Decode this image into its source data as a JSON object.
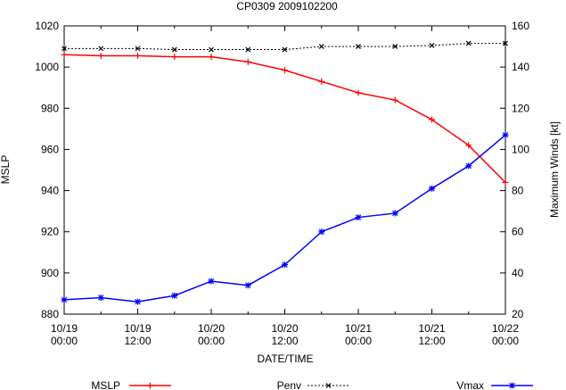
{
  "chart_data": {
    "type": "line",
    "title": "CP0309 2009102200",
    "xlabel": "DATE/TIME",
    "ylabel_left": "MSLP",
    "ylabel_right": "Maximum Winds [kt]",
    "ylim_left": [
      880,
      1020
    ],
    "ylim_right": [
      20,
      160
    ],
    "yticks_left": [
      "880",
      "900",
      "920",
      "940",
      "960",
      "980",
      "1000",
      "1020"
    ],
    "yticks_right": [
      "20",
      "40",
      "60",
      "80",
      "100",
      "120",
      "140",
      "160"
    ],
    "xticks": [
      {
        "line1": "10/19",
        "line2": "00:00"
      },
      {
        "line1": "10/19",
        "line2": "12:00"
      },
      {
        "line1": "10/20",
        "line2": "00:00"
      },
      {
        "line1": "10/20",
        "line2": "12:00"
      },
      {
        "line1": "10/21",
        "line2": "00:00"
      },
      {
        "line1": "10/21",
        "line2": "12:00"
      },
      {
        "line1": "10/22",
        "line2": "00:00"
      }
    ],
    "x_hours": [
      0,
      6,
      12,
      18,
      24,
      30,
      36,
      42,
      48,
      54,
      60,
      66,
      72
    ],
    "series": [
      {
        "name": "MSLP",
        "axis": "left",
        "color": "#ff0000",
        "marker": "plus",
        "values": [
          1006,
          1005.5,
          1005.5,
          1005,
          1005,
          1002.5,
          998.5,
          993,
          987.5,
          984,
          974.5,
          962,
          944
        ]
      },
      {
        "name": "Penv",
        "axis": "left",
        "color": "#000000",
        "marker": "x",
        "dashed": true,
        "values": [
          1009,
          1009,
          1009,
          1008.5,
          1008.5,
          1008.5,
          1008.5,
          1010,
          1010,
          1010,
          1010.5,
          1011.5,
          1011.5
        ]
      },
      {
        "name": "Vmax",
        "axis": "right",
        "color": "#0000ff",
        "marker": "star",
        "values": [
          27,
          28,
          26,
          29,
          36,
          34,
          44,
          60,
          67,
          69,
          81,
          92,
          107
        ]
      }
    ],
    "legend_position": "bottom"
  }
}
